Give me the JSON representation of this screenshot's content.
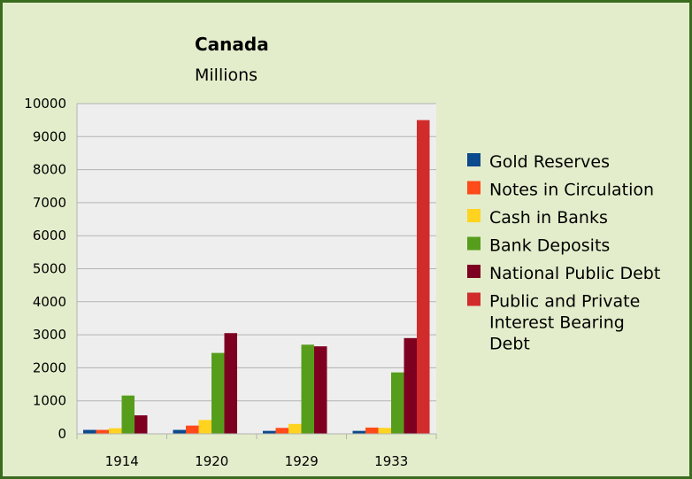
{
  "chart_data": {
    "type": "bar",
    "title": "Canada",
    "subtitle": "Millions",
    "categories": [
      "1914",
      "1920",
      "1929",
      "1933"
    ],
    "ylim": [
      0,
      10000
    ],
    "yticks": [
      0,
      1000,
      2000,
      3000,
      4000,
      5000,
      6000,
      7000,
      8000,
      9000,
      10000
    ],
    "grid": true,
    "legend_position": "right",
    "series": [
      {
        "name": "Gold Reserves",
        "color": "#0b4a8c",
        "values": [
          120,
          120,
          90,
          90
        ]
      },
      {
        "name": "Notes in Circulation",
        "color": "#ff4a1a",
        "values": [
          120,
          250,
          180,
          190
        ]
      },
      {
        "name": "Cash in Banks",
        "color": "#ffd320",
        "values": [
          170,
          420,
          300,
          180
        ]
      },
      {
        "name": "Bank Deposits",
        "color": "#579d1c",
        "values": [
          1160,
          2450,
          2700,
          1860
        ]
      },
      {
        "name": "National Public Debt",
        "color": "#7e0021",
        "values": [
          560,
          3050,
          2650,
          2900
        ]
      },
      {
        "name": "Public and Private Interest Bearing Debt",
        "color": "#d22b2b",
        "values": [
          null,
          null,
          null,
          9500
        ],
        "legend_lines": [
          "Public and Private",
          "Interest Bearing",
          "Debt"
        ]
      }
    ]
  }
}
